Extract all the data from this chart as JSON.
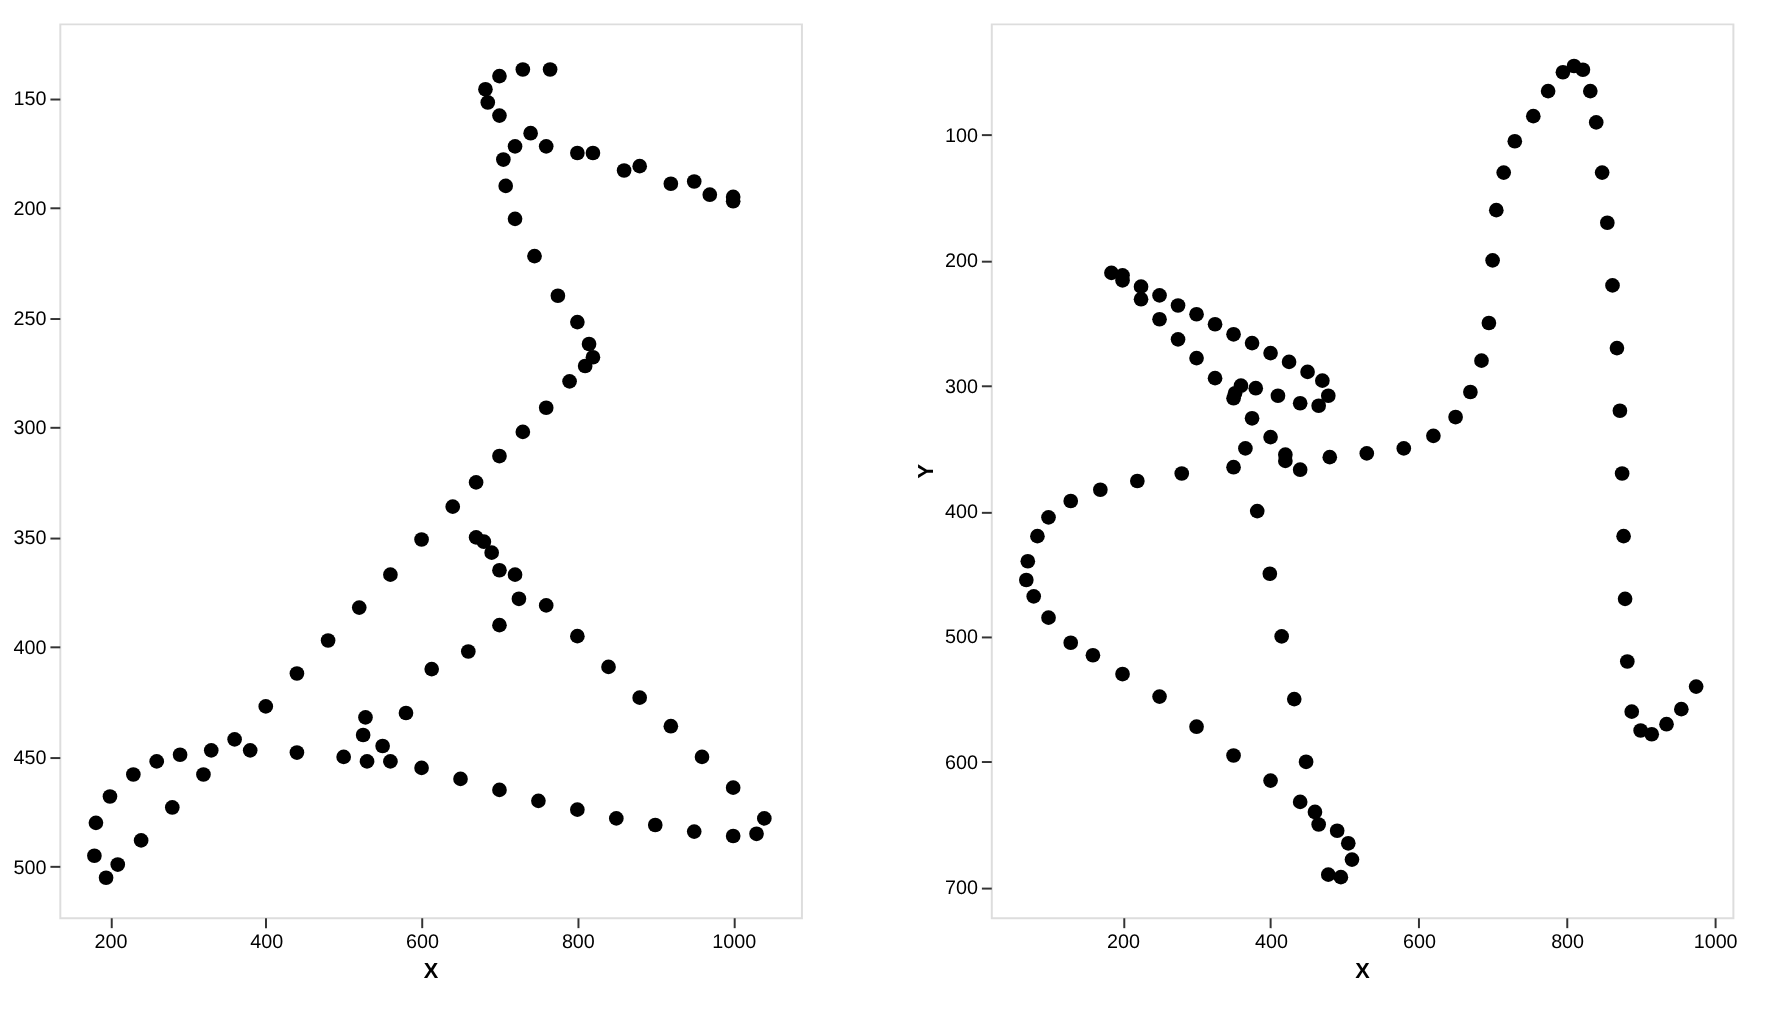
{
  "chart_data": [
    {
      "type": "scatter",
      "xlabel": "X",
      "color": "#000000",
      "marker": "circle",
      "grid": false,
      "xlim": [
        135,
        1087
      ],
      "ylim": [
        523,
        116
      ],
      "xticks": [
        200,
        400,
        600,
        800,
        {
          "value": 1000,
          "label": "1000"
        }
      ],
      "yticks": [
        150,
        200,
        250,
        300,
        350,
        400,
        450,
        500
      ],
      "x": [
        765,
        730,
        700,
        682,
        685,
        700,
        740,
        800,
        860,
        920,
        970,
        1000,
        1000,
        950,
        880,
        820,
        760,
        720,
        705,
        708,
        720,
        745,
        775,
        800,
        815,
        820,
        810,
        790,
        760,
        730,
        700,
        670,
        640,
        600,
        560,
        520,
        480,
        440,
        400,
        360,
        320,
        280,
        240,
        210,
        195,
        180,
        182,
        200,
        230,
        260,
        290,
        330,
        380,
        440,
        500,
        560,
        600,
        650,
        700,
        750,
        800,
        850,
        900,
        950,
        1000,
        1030,
        1040,
        1000,
        960,
        920,
        880,
        840,
        800,
        760,
        720,
        690,
        670,
        680,
        700,
        725,
        700,
        660,
        613,
        580,
        550,
        530,
        525,
        528
      ],
      "values": [
        137,
        137,
        140,
        146,
        152,
        158,
        166,
        175,
        183,
        189,
        194,
        197,
        195,
        188,
        181,
        175,
        172,
        172,
        178,
        190,
        205,
        222,
        240,
        252,
        262,
        268,
        272,
        279,
        291,
        302,
        313,
        325,
        336,
        351,
        367,
        382,
        397,
        412,
        427,
        442,
        458,
        473,
        488,
        499,
        505,
        495,
        480,
        468,
        458,
        452,
        449,
        447,
        447,
        448,
        450,
        452,
        455,
        460,
        465,
        470,
        474,
        478,
        481,
        484,
        486,
        485,
        478,
        464,
        450,
        436,
        423,
        409,
        395,
        381,
        367,
        357,
        350,
        352,
        365,
        378,
        390,
        402,
        410,
        430,
        445,
        452,
        440,
        432
      ]
    },
    {
      "type": "scatter",
      "xlabel": "X",
      "ylabel": "Y",
      "color": "#000000",
      "marker": "circle",
      "grid": false,
      "xlim": [
        22,
        1024
      ],
      "ylim": [
        724,
        11
      ],
      "xticks": [
        200,
        400,
        600,
        800,
        {
          "value": 1000,
          "label": "1000"
        }
      ],
      "yticks": [
        100,
        200,
        300,
        400,
        500,
        600,
        700
      ],
      "x": [
        440,
        420,
        400,
        375,
        350,
        325,
        300,
        275,
        250,
        225,
        200,
        185,
        200,
        225,
        250,
        275,
        300,
        325,
        350,
        375,
        400,
        425,
        450,
        470,
        478,
        465,
        440,
        410,
        380,
        360,
        352,
        366,
        382,
        399,
        415,
        432,
        448,
        465,
        478,
        495,
        510,
        505,
        490,
        460,
        440,
        400,
        350,
        300,
        250,
        200,
        160,
        130,
        100,
        80,
        70,
        72,
        85,
        100,
        130,
        170,
        220,
        280,
        350,
        420,
        480,
        530,
        580,
        620,
        650,
        670,
        685,
        695,
        700,
        705,
        715,
        730,
        755,
        775,
        795,
        810,
        822,
        832,
        840,
        848,
        855,
        862,
        868,
        872,
        875,
        877,
        879,
        882,
        888,
        900,
        915,
        935,
        955,
        975
      ],
      "values": [
        367,
        355,
        341,
        326,
        310,
        294,
        278,
        263,
        247,
        231,
        216,
        210,
        212,
        221,
        228,
        236,
        243,
        251,
        259,
        266,
        274,
        281,
        289,
        296,
        308,
        316,
        314,
        308,
        302,
        300,
        306,
        350,
        400,
        450,
        500,
        550,
        600,
        650,
        690,
        692,
        678,
        665,
        655,
        640,
        632,
        615,
        595,
        572,
        548,
        530,
        515,
        505,
        485,
        468,
        455,
        440,
        420,
        405,
        392,
        383,
        376,
        370,
        365,
        360,
        357,
        354,
        350,
        340,
        325,
        305,
        280,
        250,
        200,
        160,
        130,
        105,
        85,
        65,
        50,
        45,
        48,
        65,
        90,
        130,
        170,
        220,
        270,
        320,
        370,
        420,
        470,
        520,
        560,
        575,
        578,
        570,
        558,
        540
      ]
    }
  ]
}
